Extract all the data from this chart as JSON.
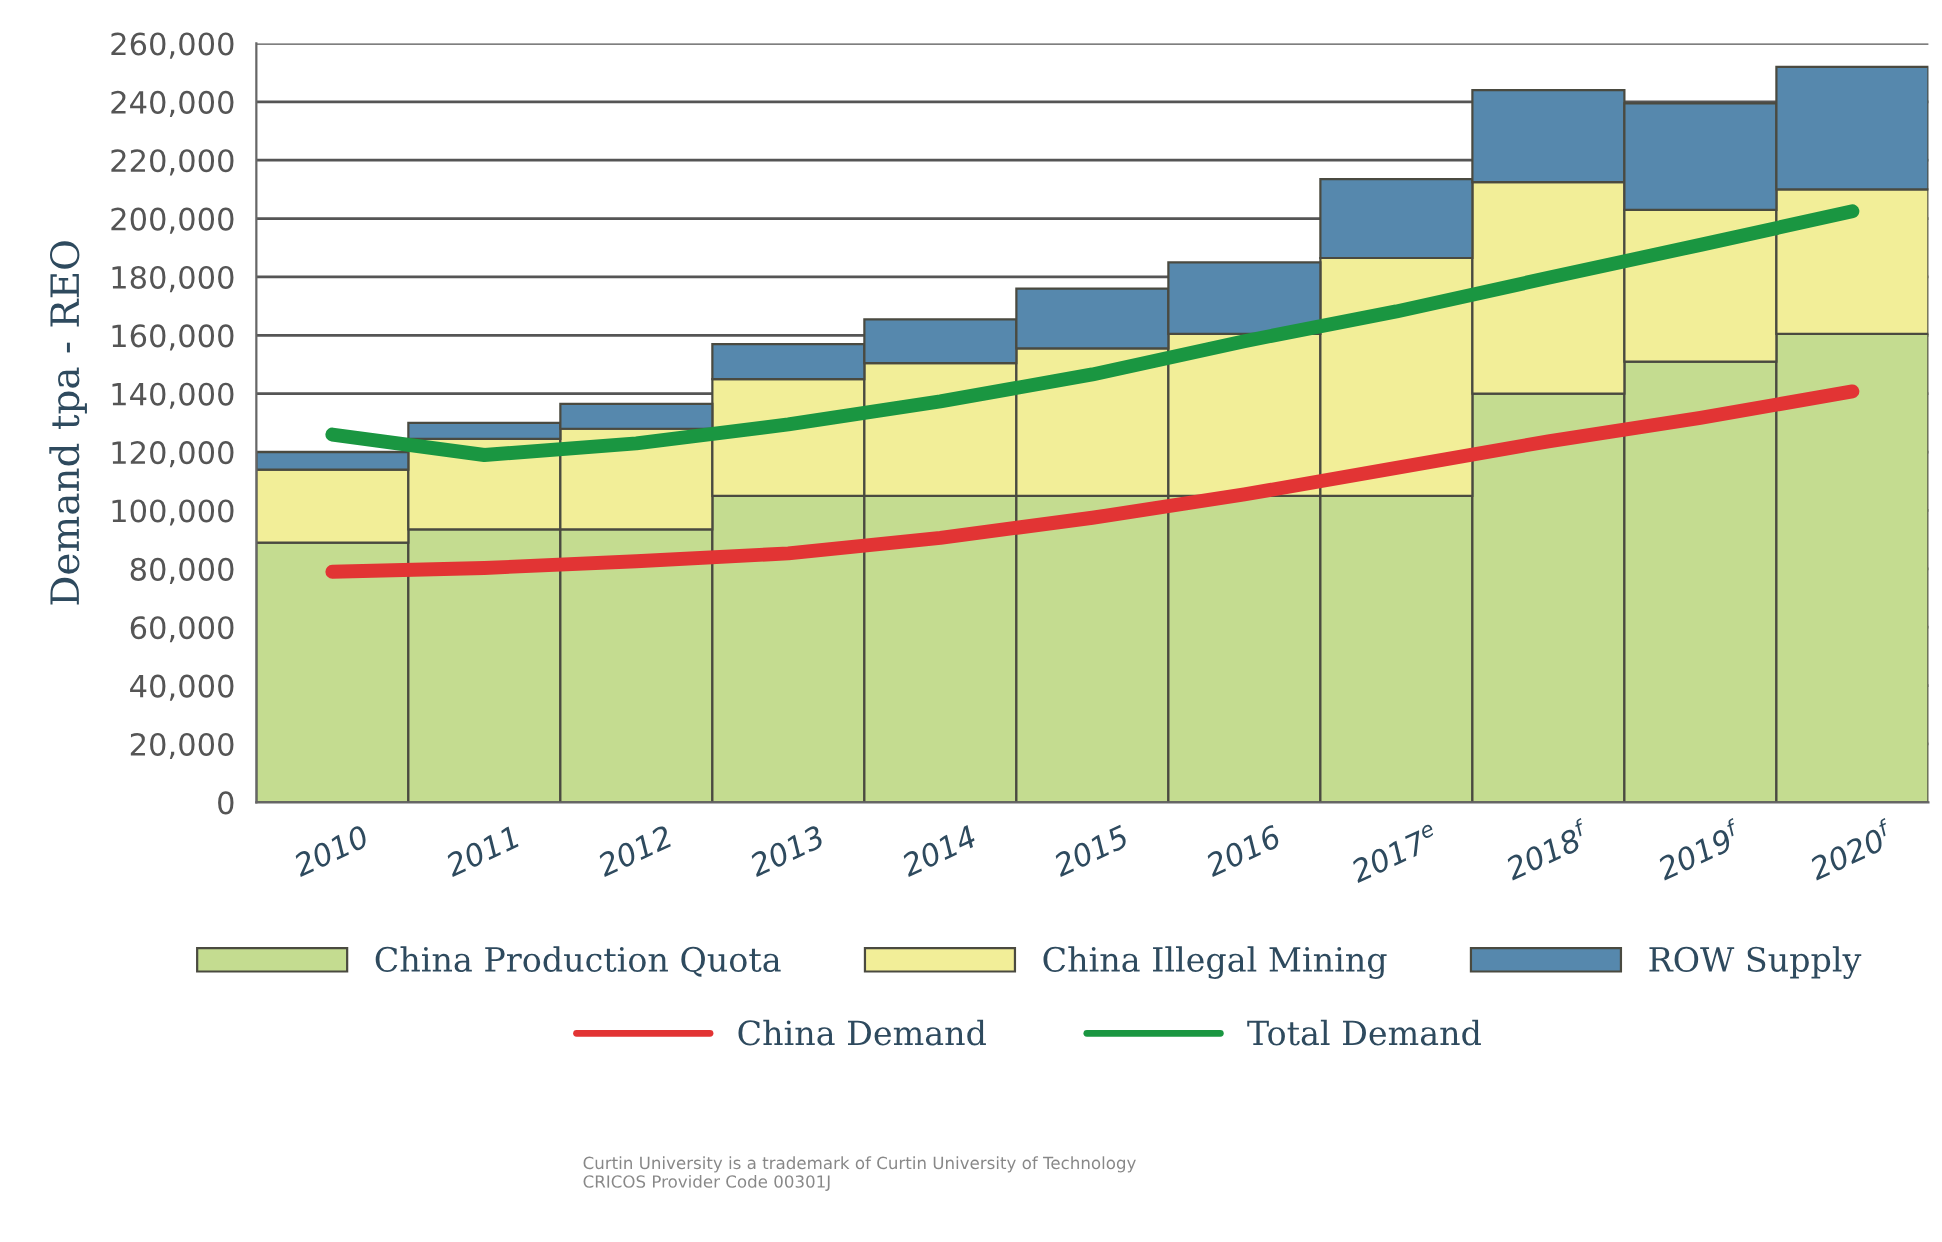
{
  "chart_data": {
    "type": "bar",
    "stacked": true,
    "ylabel": "Demand tpa - REO",
    "categories": [
      "2010",
      "2011",
      "2012",
      "2013",
      "2014",
      "2015",
      "2016",
      "2017$^{e}$",
      "2018$^{f}$",
      "2019$^{f}$",
      "2020$^{f}$"
    ],
    "series": [
      {
        "name": "China Production Quota",
        "color": "#c4dc90",
        "values": [
          89000,
          93500,
          93500,
          105000,
          105000,
          105000,
          105000,
          105000,
          140000,
          151000,
          160500
        ]
      },
      {
        "name": "China Illegal Mining",
        "color": "#f2ee98",
        "values": [
          25000,
          31000,
          34500,
          40000,
          45500,
          50500,
          55500,
          81500,
          72500,
          52000,
          49500
        ]
      },
      {
        "name": "ROW Supply",
        "color": "#5688ad",
        "values": [
          6000,
          5500,
          8500,
          12000,
          15000,
          20500,
          24500,
          27000,
          31500,
          36500,
          42000
        ]
      },
      {
        "name": "China Demand",
        "type": "line",
        "color": "#e23434",
        "values": [
          79000,
          80300,
          82600,
          85300,
          90600,
          97500,
          105500,
          114600,
          123700,
          131700,
          140800
        ]
      },
      {
        "name": "Total Demand",
        "type": "line",
        "color": "#1a9641",
        "values": [
          126000,
          119000,
          123000,
          129500,
          137400,
          146600,
          158000,
          168200,
          179700,
          191000,
          202500
        ]
      }
    ],
    "ylim": [
      0,
      260000
    ],
    "yticks": [
      {
        "value": 0,
        "label": "0"
      },
      {
        "value": 20000,
        "label": "20,000"
      },
      {
        "value": 40000,
        "label": "40,000"
      },
      {
        "value": 60000,
        "label": "60,000"
      },
      {
        "value": 80000,
        "label": "80,000"
      },
      {
        "value": 100000,
        "label": "100,000"
      },
      {
        "value": 120000,
        "label": "120,000"
      },
      {
        "value": 140000,
        "label": "140,000"
      },
      {
        "value": 160000,
        "label": "160,000"
      },
      {
        "value": 180000,
        "label": "180,000"
      },
      {
        "value": 200000,
        "label": "200,000"
      },
      {
        "value": 220000,
        "label": "220,000"
      },
      {
        "value": 240000,
        "label": "240,000"
      },
      {
        "value": 260000,
        "label": "260,000"
      }
    ],
    "grid": "y",
    "legend": "bottom",
    "annotations": [
      "Curtin University is a trademark of Curtin University of Technology\nCRICOS Provider Code 00301J"
    ]
  }
}
